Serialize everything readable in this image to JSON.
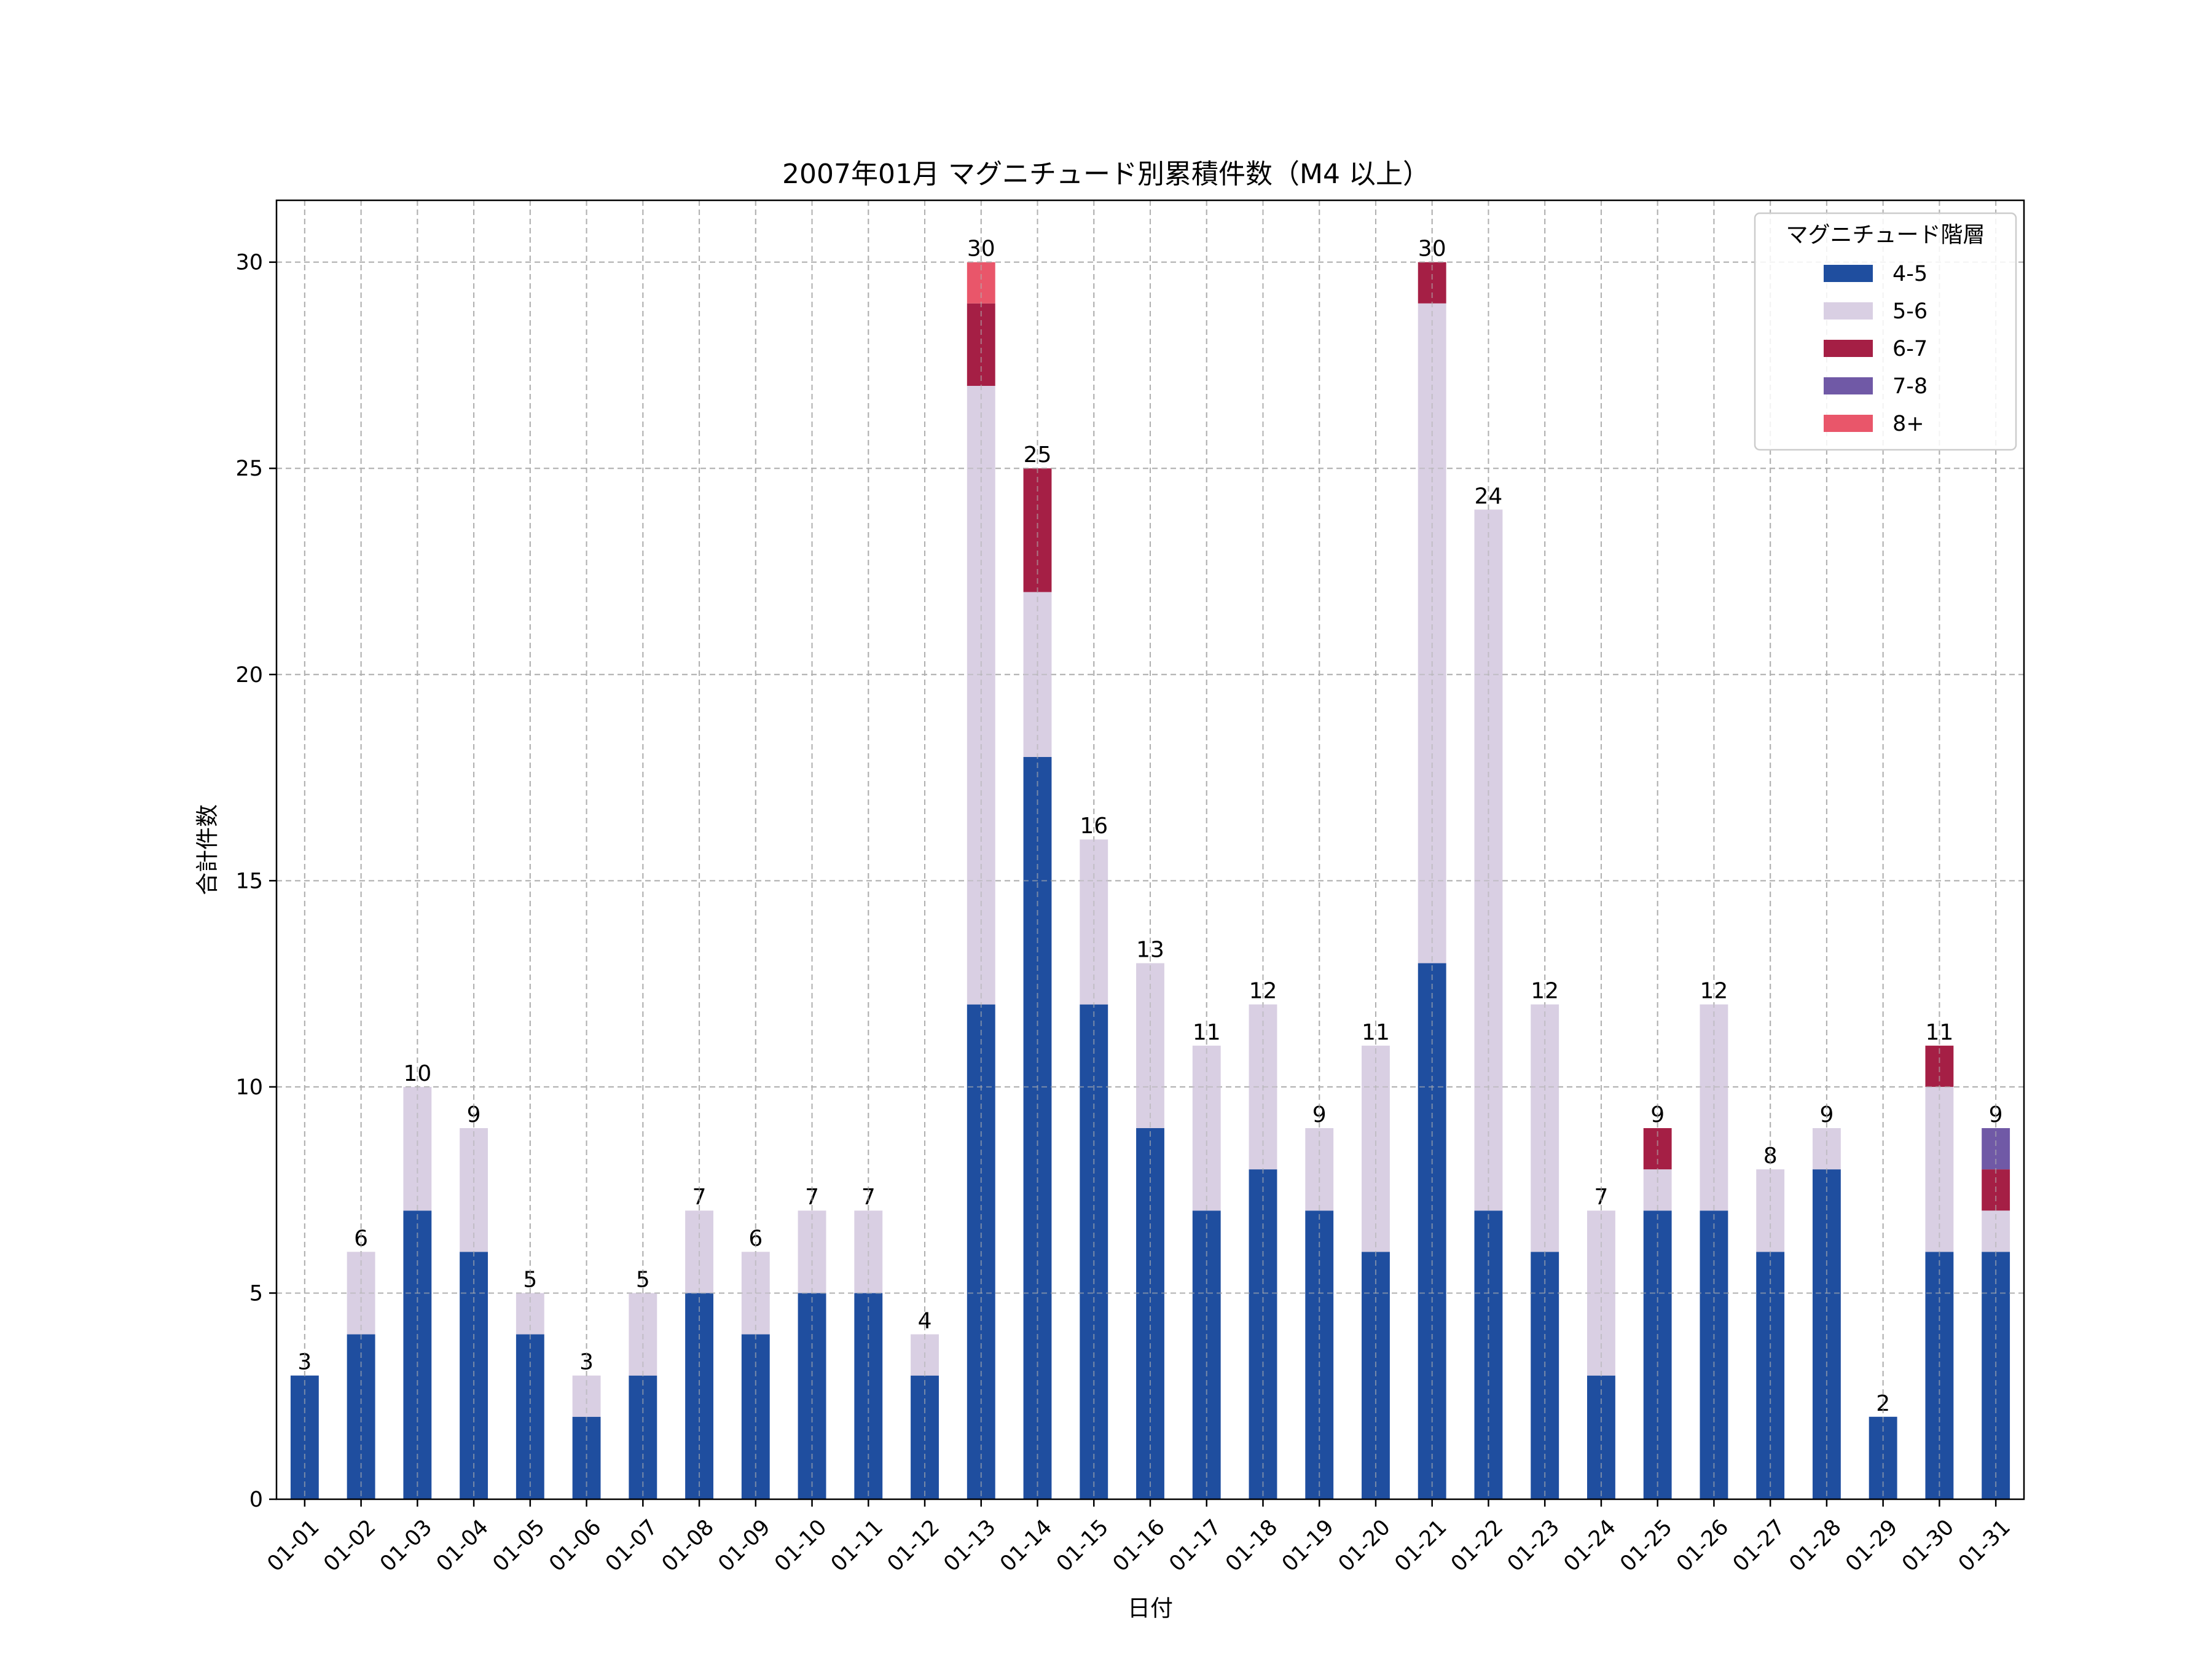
{
  "chart_data": {
    "type": "bar",
    "stacked": true,
    "title": "2007年01月 マグニチュード別累積件数（M4 以上）",
    "xlabel": "日付",
    "ylabel": "合計件数",
    "ylim": [
      0,
      31.5
    ],
    "yticks": [
      0,
      5,
      10,
      15,
      20,
      25,
      30
    ],
    "grid": true,
    "legend_title": "マグニチュード階層",
    "legend_position": "top-right",
    "categories": [
      "01-01",
      "01-02",
      "01-03",
      "01-04",
      "01-05",
      "01-06",
      "01-07",
      "01-08",
      "01-09",
      "01-10",
      "01-11",
      "01-12",
      "01-13",
      "01-14",
      "01-15",
      "01-16",
      "01-17",
      "01-18",
      "01-19",
      "01-20",
      "01-21",
      "01-22",
      "01-23",
      "01-24",
      "01-25",
      "01-26",
      "01-27",
      "01-28",
      "01-29",
      "01-30",
      "01-31"
    ],
    "series": [
      {
        "name": "4-5",
        "color": "#1f4e9f",
        "values": [
          3,
          4,
          7,
          6,
          4,
          2,
          3,
          5,
          4,
          5,
          5,
          3,
          12,
          18,
          12,
          9,
          7,
          8,
          7,
          6,
          13,
          7,
          6,
          3,
          7,
          7,
          6,
          8,
          2,
          6,
          6
        ]
      },
      {
        "name": "5-6",
        "color": "#d9cfe3",
        "values": [
          0,
          2,
          3,
          3,
          1,
          1,
          2,
          2,
          2,
          2,
          2,
          1,
          15,
          4,
          4,
          4,
          4,
          4,
          2,
          5,
          16,
          17,
          6,
          4,
          1,
          5,
          2,
          1,
          0,
          4,
          1
        ]
      },
      {
        "name": "6-7",
        "color": "#a51f45",
        "values": [
          0,
          0,
          0,
          0,
          0,
          0,
          0,
          0,
          0,
          0,
          0,
          0,
          2,
          3,
          0,
          0,
          0,
          0,
          0,
          0,
          1,
          0,
          0,
          0,
          1,
          0,
          0,
          0,
          0,
          1,
          1
        ]
      },
      {
        "name": "7-8",
        "color": "#7059a6",
        "values": [
          0,
          0,
          0,
          0,
          0,
          0,
          0,
          0,
          0,
          0,
          0,
          0,
          0,
          0,
          0,
          0,
          0,
          0,
          0,
          0,
          0,
          0,
          0,
          0,
          0,
          0,
          0,
          0,
          0,
          0,
          1
        ]
      },
      {
        "name": "8+",
        "color": "#e9566a",
        "values": [
          0,
          0,
          0,
          0,
          0,
          0,
          0,
          0,
          0,
          0,
          0,
          0,
          1,
          0,
          0,
          0,
          0,
          0,
          0,
          0,
          0,
          0,
          0,
          0,
          0,
          0,
          0,
          0,
          0,
          0,
          0
        ]
      }
    ],
    "totals": [
      3,
      6,
      10,
      9,
      5,
      3,
      5,
      7,
      6,
      7,
      7,
      4,
      30,
      25,
      16,
      13,
      11,
      12,
      9,
      11,
      30,
      24,
      12,
      7,
      9,
      12,
      8,
      9,
      2,
      11,
      9
    ]
  }
}
